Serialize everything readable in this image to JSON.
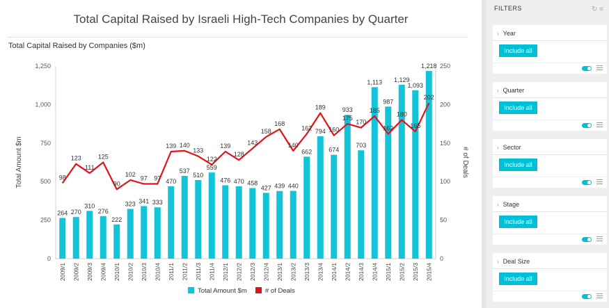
{
  "chart": {
    "title": "Total Capital Raised by Israeli High-Tech Companies by Quarter",
    "subtitle": "Total Capital Raised by Companies ($m)"
  },
  "colors": {
    "bar": "#13c4d8",
    "line": "#e3121a",
    "accent": "#00c0d8"
  },
  "chart_data": {
    "type": "bar",
    "title": "Total Capital Raised by Israeli High-Tech Companies by Quarter",
    "categories": [
      "2009/1",
      "2009/2",
      "2009/3",
      "2009/4",
      "2010/1",
      "2010/2",
      "2010/3",
      "2010/4",
      "2011/1",
      "2011/2",
      "2011/3",
      "2011/4",
      "2012/1",
      "2012/2",
      "2012/3",
      "2012/4",
      "2013/1",
      "2013/2",
      "2013/3",
      "2013/4",
      "2014/1",
      "2014/2",
      "2014/3",
      "2014/4",
      "2015/1",
      "2015/2",
      "2015/3",
      "2015/4"
    ],
    "series": [
      {
        "name": "Total Amount $m",
        "type": "bar",
        "axis": "left",
        "values": [
          264,
          270,
          310,
          276,
          222,
          323,
          341,
          333,
          470,
          537,
          510,
          559,
          476,
          470,
          458,
          427,
          439,
          440,
          662,
          794,
          674,
          933,
          703,
          1113,
          987,
          1129,
          1093,
          1218
        ]
      },
      {
        "name": "# of Deals",
        "type": "line",
        "axis": "right",
        "values": [
          98,
          123,
          111,
          125,
          90,
          102,
          97,
          97,
          139,
          140,
          133,
          122,
          139,
          128,
          143,
          158,
          168,
          140,
          162,
          189,
          160,
          175,
          170,
          185,
          162,
          180,
          165,
          202
        ]
      }
    ],
    "bar_labels": [
      "264",
      "270",
      "310",
      "276",
      "222",
      "323",
      "341",
      "333",
      "470",
      "537",
      "510",
      "559",
      "476",
      "470",
      "458",
      "427",
      "439",
      "440",
      "662",
      "794",
      "674",
      "933",
      "703",
      "1,113",
      "987",
      "1,129",
      "1,093",
      "1,218"
    ],
    "line_labels": [
      "98",
      "123",
      "111",
      "125",
      "90",
      "102",
      "97",
      "97",
      "139",
      "140",
      "133",
      "122",
      "139",
      "128",
      "143",
      "158",
      "168",
      "140",
      "162",
      "189",
      "160",
      "175",
      "170",
      "185",
      "162",
      "180",
      "165",
      "202"
    ],
    "ylabel": "Total Amount $m",
    "y2label": "# of Deals",
    "ylim": [
      0,
      1250
    ],
    "y2lim": [
      0,
      250
    ],
    "yticks": [
      "0",
      "250",
      "500",
      "750",
      "1,000",
      "1,250"
    ],
    "y2ticks": [
      "0",
      "50",
      "100",
      "150",
      "200",
      "250"
    ],
    "legend": [
      "Total Amount $m",
      "# of Deals"
    ],
    "legend_position": "bottom-center",
    "grid": false
  },
  "filters": {
    "header": "FILTERS",
    "items": [
      {
        "label": "Year",
        "button": "Include all"
      },
      {
        "label": "Quarter",
        "button": "Include all"
      },
      {
        "label": "Sector",
        "button": "Include all"
      },
      {
        "label": "Stage",
        "button": "Include all"
      },
      {
        "label": "Deal Size",
        "button": "Include all"
      }
    ]
  }
}
